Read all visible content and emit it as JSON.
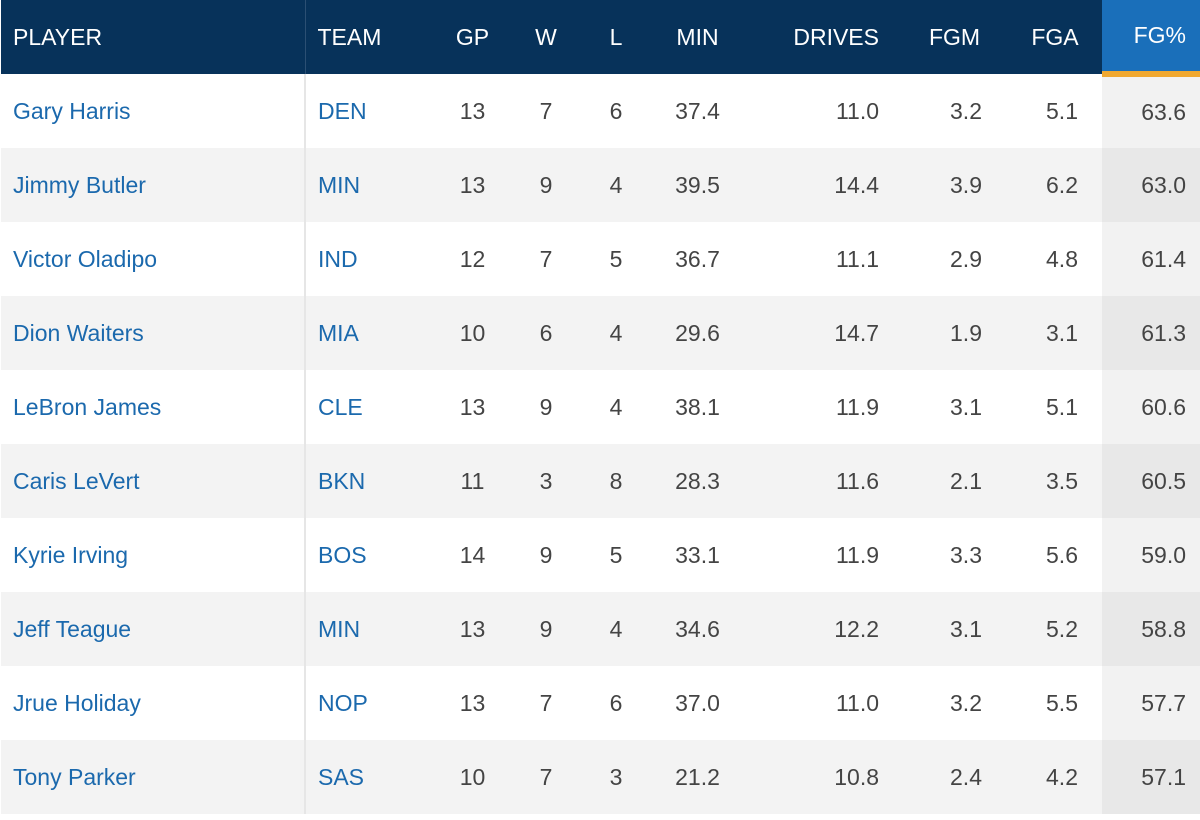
{
  "headers": {
    "player": "PLAYER",
    "team": "TEAM",
    "gp": "GP",
    "w": "W",
    "l": "L",
    "min": "MIN",
    "drives": "DRIVES",
    "fgm": "FGM",
    "fga": "FGA",
    "fgp": "FG%"
  },
  "sorted_column": "FG%",
  "colors": {
    "header_bg": "#07325a",
    "sorted_header_bg": "#1a6fba",
    "sort_indicator": "#f0a830",
    "link": "#1b69ad"
  },
  "rows": [
    {
      "player": "Gary Harris",
      "team": "DEN",
      "gp": "13",
      "w": "7",
      "l": "6",
      "min": "37.4",
      "drives": "11.0",
      "fgm": "3.2",
      "fga": "5.1",
      "fgp": "63.6"
    },
    {
      "player": "Jimmy Butler",
      "team": "MIN",
      "gp": "13",
      "w": "9",
      "l": "4",
      "min": "39.5",
      "drives": "14.4",
      "fgm": "3.9",
      "fga": "6.2",
      "fgp": "63.0"
    },
    {
      "player": "Victor Oladipo",
      "team": "IND",
      "gp": "12",
      "w": "7",
      "l": "5",
      "min": "36.7",
      "drives": "11.1",
      "fgm": "2.9",
      "fga": "4.8",
      "fgp": "61.4"
    },
    {
      "player": "Dion Waiters",
      "team": "MIA",
      "gp": "10",
      "w": "6",
      "l": "4",
      "min": "29.6",
      "drives": "14.7",
      "fgm": "1.9",
      "fga": "3.1",
      "fgp": "61.3"
    },
    {
      "player": "LeBron James",
      "team": "CLE",
      "gp": "13",
      "w": "9",
      "l": "4",
      "min": "38.1",
      "drives": "11.9",
      "fgm": "3.1",
      "fga": "5.1",
      "fgp": "60.6"
    },
    {
      "player": "Caris LeVert",
      "team": "BKN",
      "gp": "11",
      "w": "3",
      "l": "8",
      "min": "28.3",
      "drives": "11.6",
      "fgm": "2.1",
      "fga": "3.5",
      "fgp": "60.5"
    },
    {
      "player": "Kyrie Irving",
      "team": "BOS",
      "gp": "14",
      "w": "9",
      "l": "5",
      "min": "33.1",
      "drives": "11.9",
      "fgm": "3.3",
      "fga": "5.6",
      "fgp": "59.0"
    },
    {
      "player": "Jeff Teague",
      "team": "MIN",
      "gp": "13",
      "w": "9",
      "l": "4",
      "min": "34.6",
      "drives": "12.2",
      "fgm": "3.1",
      "fga": "5.2",
      "fgp": "58.8"
    },
    {
      "player": "Jrue Holiday",
      "team": "NOP",
      "gp": "13",
      "w": "7",
      "l": "6",
      "min": "37.0",
      "drives": "11.0",
      "fgm": "3.2",
      "fga": "5.5",
      "fgp": "57.7"
    },
    {
      "player": "Tony Parker",
      "team": "SAS",
      "gp": "10",
      "w": "7",
      "l": "3",
      "min": "21.2",
      "drives": "10.8",
      "fgm": "2.4",
      "fga": "4.2",
      "fgp": "57.1"
    }
  ]
}
